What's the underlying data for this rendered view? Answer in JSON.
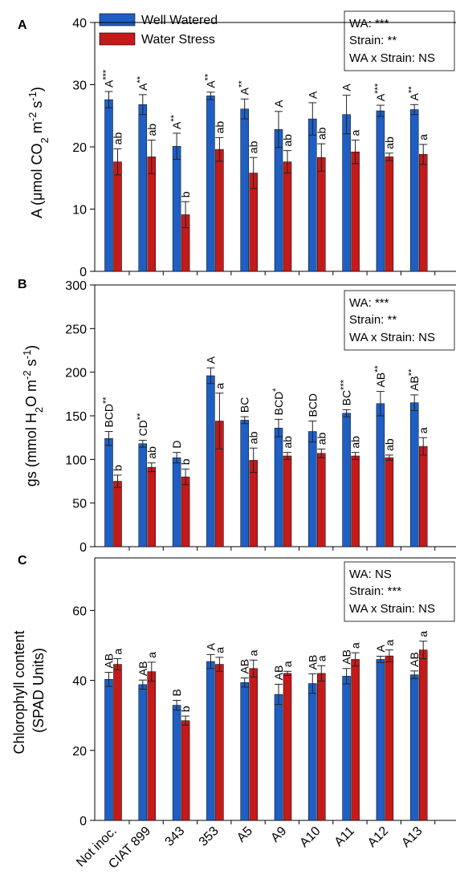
{
  "legend": {
    "items": [
      {
        "label": "Well Watered",
        "color": "#1f5fc4"
      },
      {
        "label": "Water Stress",
        "color": "#c41a1a"
      }
    ]
  },
  "x_tick_labels": [
    "Not inoc.",
    "CIAT 899",
    "343",
    "353",
    "A5",
    "A9",
    "A10",
    "A11",
    "A12",
    "A13"
  ],
  "colors": {
    "well_watered": "#1f5fc4",
    "water_stress": "#c41a1a"
  },
  "chart_data": [
    {
      "type": "bar",
      "panel_label": "A",
      "ylabel_text": "A (μmol CO",
      "ylabel_sub": "2",
      "ylabel_rest": " m",
      "ylabel_sup1": "-2",
      "ylabel_tail": " s",
      "ylabel_sup2": "-1",
      "ylabel_close": ")",
      "ylim": [
        0,
        40
      ],
      "yticks": [
        0,
        10,
        20,
        30,
        40
      ],
      "stats": [
        "WA: ***",
        "Strain: **",
        "WA x Strain: NS"
      ],
      "categories": [
        "Not inoc.",
        "CIAT 899",
        "343",
        "353",
        "A5",
        "A9",
        "A10",
        "A11",
        "A12",
        "A13"
      ],
      "series": [
        {
          "name": "Well Watered",
          "values": [
            27.6,
            26.8,
            20.1,
            28.2,
            26.1,
            22.8,
            24.5,
            25.2,
            25.8,
            26.0
          ],
          "errors": [
            1.3,
            1.6,
            2.1,
            0.6,
            1.6,
            2.9,
            2.6,
            3.1,
            0.9,
            0.8
          ],
          "labels": [
            "A",
            "A",
            "A",
            "A",
            "A",
            "A",
            "A",
            "A",
            "A",
            "A"
          ],
          "sig": [
            "***",
            "**",
            "**",
            "**",
            "**",
            "",
            "",
            "",
            "***",
            "**"
          ]
        },
        {
          "name": "Water Stress",
          "values": [
            17.6,
            18.4,
            9.1,
            19.6,
            15.8,
            17.6,
            18.3,
            19.2,
            18.4,
            18.8
          ],
          "errors": [
            2.1,
            2.7,
            2.1,
            1.9,
            2.5,
            1.8,
            2.2,
            1.9,
            0.6,
            1.6
          ],
          "labels": [
            "ab",
            "ab",
            "b",
            "ab",
            "ab",
            "ab",
            "ab",
            "a",
            "ab",
            "a"
          ],
          "sig": [
            "",
            "",
            "",
            "",
            "",
            "",
            "",
            "",
            "",
            ""
          ]
        }
      ]
    },
    {
      "type": "bar",
      "panel_label": "B",
      "ylabel_text": "gs (mmol H",
      "ylabel_sub": "2",
      "ylabel_rest": "O m",
      "ylabel_sup1": "-2",
      "ylabel_tail": " s",
      "ylabel_sup2": "-1",
      "ylabel_close": ")",
      "ylim": [
        0,
        300
      ],
      "yticks": [
        0,
        50,
        100,
        150,
        200,
        250,
        300
      ],
      "stats": [
        "WA: ***",
        "Strain: **",
        "WA x Strain: NS"
      ],
      "categories": [
        "Not inoc.",
        "CIAT 899",
        "343",
        "353",
        "A5",
        "A9",
        "A10",
        "A11",
        "A12",
        "A13"
      ],
      "series": [
        {
          "name": "Well Watered",
          "values": [
            124,
            118,
            102,
            196,
            145,
            136,
            132,
            153,
            164,
            165
          ],
          "errors": [
            8,
            4,
            6,
            9,
            4,
            10,
            12,
            4,
            14,
            9
          ],
          "labels": [
            "BCD",
            "CD",
            "D",
            "A",
            "BC",
            "BCD",
            "BCD",
            "BC",
            "AB",
            "AB"
          ],
          "sig": [
            "**",
            "**",
            "",
            "",
            "",
            "*",
            "",
            "***",
            "**",
            "**"
          ]
        },
        {
          "name": "Water Stress",
          "values": [
            75,
            91,
            80,
            144,
            99,
            104,
            107,
            104,
            102,
            115
          ],
          "errors": [
            7,
            5,
            9,
            32,
            14,
            4,
            5,
            4,
            3,
            10
          ],
          "labels": [
            "b",
            "ab",
            "b",
            "a",
            "ab",
            "ab",
            "ab",
            "ab",
            "ab",
            "a"
          ],
          "sig": [
            "",
            "",
            "",
            "",
            "",
            "",
            "",
            "",
            "",
            ""
          ]
        }
      ]
    },
    {
      "type": "bar",
      "panel_label": "C",
      "ylabel_line1": "Chlorophyll content",
      "ylabel_line2": "(SPAD Units)",
      "ylim": [
        0,
        75
      ],
      "yticks": [
        0,
        20,
        40,
        60
      ],
      "stats": [
        "WA: NS",
        "Strain: ***",
        "WA x Strain: NS"
      ],
      "categories": [
        "Not inoc.",
        "CIAT 899",
        "343",
        "353",
        "A5",
        "A9",
        "A10",
        "A11",
        "A12",
        "A13"
      ],
      "series": [
        {
          "name": "Well Watered",
          "values": [
            40.3,
            38.8,
            32.9,
            45.4,
            39.4,
            36.0,
            39.1,
            41.2,
            46.0,
            41.6
          ],
          "errors": [
            2.0,
            1.3,
            1.4,
            2.0,
            1.3,
            2.9,
            2.8,
            2.2,
            0.9,
            1.1
          ],
          "labels": [
            "AB",
            "AB",
            "B",
            "A",
            "AB",
            "AB",
            "AB",
            "AB",
            "A",
            "AB"
          ],
          "sig": [
            "",
            "",
            "",
            "",
            "",
            "",
            "",
            "",
            "",
            ""
          ]
        },
        {
          "name": "Water Stress",
          "values": [
            44.6,
            42.5,
            28.5,
            44.6,
            43.4,
            42.0,
            42.0,
            46.0,
            47.0,
            48.7
          ],
          "errors": [
            1.6,
            2.7,
            1.3,
            2.0,
            2.4,
            0.6,
            2.2,
            1.9,
            1.7,
            2.5
          ],
          "labels": [
            "a",
            "a",
            "b",
            "a",
            "a",
            "a",
            "a",
            "a",
            "a",
            "a"
          ],
          "sig": [
            "",
            "",
            "",
            "",
            "",
            "",
            "",
            "",
            "",
            ""
          ]
        }
      ]
    }
  ]
}
